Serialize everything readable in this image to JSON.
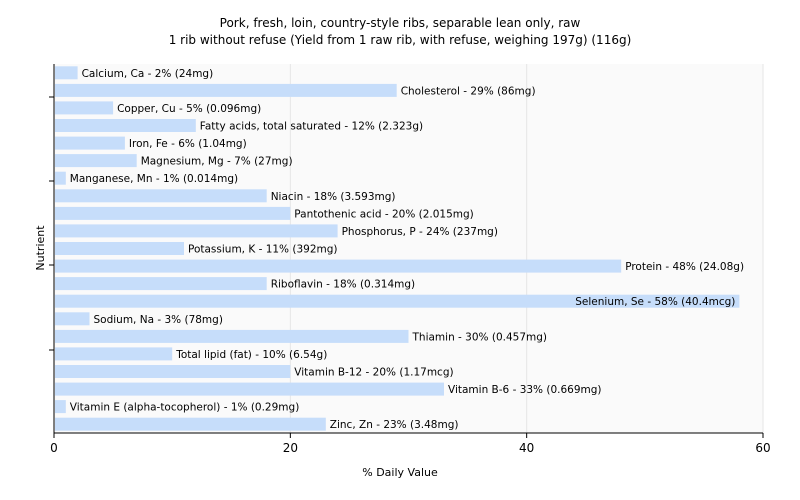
{
  "chart_data": {
    "type": "bar",
    "orientation": "horizontal",
    "title": "Pork, fresh, loin, country-style ribs, separable lean only, raw",
    "subtitle": "1 rib without refuse (Yield from 1 raw rib, with refuse, weighing 197g) (116g)",
    "xlabel": "% Daily Value",
    "ylabel": "Nutrient",
    "xlim": [
      0,
      60
    ],
    "xticks": [
      0,
      20,
      40,
      60
    ],
    "grid": true,
    "bar_color": "#c6ddfa",
    "categories": [
      "Calcium, Ca",
      "Cholesterol",
      "Copper, Cu",
      "Fatty acids, total saturated",
      "Iron, Fe",
      "Magnesium, Mg",
      "Manganese, Mn",
      "Niacin",
      "Pantothenic acid",
      "Phosphorus, P",
      "Potassium, K",
      "Protein",
      "Riboflavin",
      "Selenium, Se",
      "Sodium, Na",
      "Thiamin",
      "Total lipid (fat)",
      "Vitamin B-12",
      "Vitamin B-6",
      "Vitamin E (alpha-tocopherol)",
      "Zinc, Zn"
    ],
    "values": [
      2,
      29,
      5,
      12,
      6,
      7,
      1,
      18,
      20,
      24,
      11,
      48,
      18,
      58,
      3,
      30,
      10,
      20,
      33,
      1,
      23
    ],
    "labels": [
      "Calcium, Ca - 2% (24mg)",
      "Cholesterol - 29% (86mg)",
      "Copper, Cu - 5% (0.096mg)",
      "Fatty acids, total saturated - 12% (2.323g)",
      "Iron, Fe - 6% (1.04mg)",
      "Magnesium, Mg - 7% (27mg)",
      "Manganese, Mn - 1% (0.014mg)",
      "Niacin - 18% (3.593mg)",
      "Pantothenic acid - 20% (2.015mg)",
      "Phosphorus, P - 24% (237mg)",
      "Potassium, K - 11% (392mg)",
      "Protein - 48% (24.08g)",
      "Riboflavin - 18% (0.314mg)",
      "Selenium, Se - 58% (40.4mcg)",
      "Sodium, Na - 3% (78mg)",
      "Thiamin - 30% (0.457mg)",
      "Total lipid (fat) - 10% (6.54g)",
      "Vitamin B-12 - 20% (1.17mcg)",
      "Vitamin B-6 - 33% (0.669mg)",
      "Vitamin E (alpha-tocopherol) - 1% (0.29mg)",
      "Zinc, Zn - 23% (3.48mg)"
    ]
  }
}
